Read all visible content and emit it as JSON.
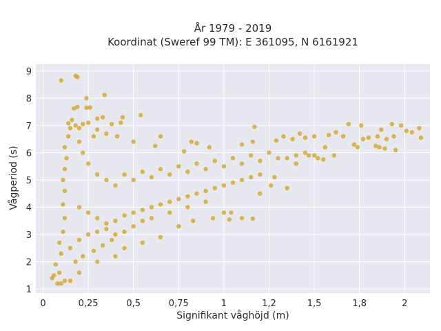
{
  "chart_data": {
    "type": "scatter",
    "title_line1": "År 1979 - 2019",
    "title_line2": "Koordinat (Sweref 99 TM): E 361095, N 6161921",
    "xlabel": "Signifikant våghöjd (m)",
    "ylabel": "Vågperiod (s)",
    "xlim": [
      -0.04,
      2.14
    ],
    "ylim": [
      0.85,
      9.25
    ],
    "xticks": [
      0,
      0.25,
      0.5,
      0.75,
      1,
      1.25,
      1.5,
      1.75,
      2
    ],
    "xtick_labels": [
      "0",
      "0,25",
      "0,5",
      "0,75",
      "1",
      "1,2",
      "1,5",
      "1,8",
      "2"
    ],
    "yticks": [
      1,
      2,
      3,
      4,
      5,
      6,
      7,
      8,
      9
    ],
    "ytick_labels": [
      "1",
      "2",
      "3",
      "4",
      "5",
      "6",
      "7",
      "8",
      "9"
    ],
    "grid": true,
    "marker_color": "#d4a523",
    "background_color": "#e8e8f0",
    "series": [
      {
        "values": [
          [
            0.1,
            8.65
          ],
          [
            0.18,
            8.82
          ],
          [
            0.19,
            8.78
          ],
          [
            0.34,
            8.12
          ],
          [
            0.24,
            8.0
          ],
          [
            0.19,
            7.68
          ],
          [
            0.17,
            7.62
          ],
          [
            0.24,
            7.65
          ],
          [
            0.26,
            7.66
          ],
          [
            0.54,
            7.38
          ],
          [
            0.44,
            7.3
          ],
          [
            0.3,
            7.25
          ],
          [
            0.33,
            7.3
          ],
          [
            0.25,
            7.1
          ],
          [
            0.43,
            7.1
          ],
          [
            0.38,
            7.05
          ],
          [
            0.14,
            7.08
          ],
          [
            0.22,
            7.05
          ],
          [
            0.2,
            6.9
          ],
          [
            0.3,
            6.85
          ],
          [
            0.35,
            6.7
          ],
          [
            0.28,
            6.6
          ],
          [
            0.41,
            6.6
          ],
          [
            0.65,
            6.6
          ],
          [
            0.5,
            6.4
          ],
          [
            0.78,
            6.05
          ],
          [
            0.62,
            6.25
          ],
          [
            0.85,
            6.35
          ],
          [
            0.82,
            6.4
          ],
          [
            0.92,
            6.2
          ],
          [
            1.1,
            6.3
          ],
          [
            1.16,
            6.4
          ],
          [
            1.17,
            6.95
          ],
          [
            1.29,
            6.45
          ],
          [
            1.33,
            6.6
          ],
          [
            1.42,
            6.7
          ],
          [
            1.45,
            6.55
          ],
          [
            1.38,
            6.5
          ],
          [
            1.5,
            6.6
          ],
          [
            1.58,
            6.65
          ],
          [
            1.62,
            6.75
          ],
          [
            1.69,
            7.05
          ],
          [
            1.76,
            7.0
          ],
          [
            1.85,
            6.6
          ],
          [
            1.87,
            6.85
          ],
          [
            1.93,
            7.05
          ],
          [
            1.98,
            7.0
          ],
          [
            2.01,
            6.8
          ],
          [
            2.04,
            6.75
          ],
          [
            2.08,
            6.9
          ],
          [
            2.09,
            6.55
          ],
          [
            1.9,
            6.5
          ],
          [
            1.94,
            6.6
          ],
          [
            1.84,
            6.25
          ],
          [
            1.77,
            6.5
          ],
          [
            1.8,
            6.55
          ],
          [
            1.74,
            6.2
          ],
          [
            1.86,
            6.2
          ],
          [
            1.89,
            6.15
          ],
          [
            1.95,
            6.1
          ],
          [
            1.72,
            6.3
          ],
          [
            1.66,
            6.6
          ],
          [
            1.56,
            6.2
          ],
          [
            1.61,
            5.9
          ],
          [
            1.55,
            5.75
          ],
          [
            1.52,
            5.8
          ],
          [
            1.47,
            5.9
          ],
          [
            1.4,
            5.6
          ],
          [
            1.35,
            5.8
          ],
          [
            1.28,
            5.1
          ],
          [
            1.35,
            4.7
          ],
          [
            1.2,
            4.5
          ],
          [
            1.26,
            4.8
          ],
          [
            1.04,
            3.8
          ],
          [
            1.1,
            3.6
          ],
          [
            1.16,
            3.58
          ],
          [
            1.03,
            3.55
          ],
          [
            1.0,
            3.8
          ],
          [
            0.94,
            3.6
          ],
          [
            0.83,
            3.5
          ],
          [
            0.75,
            3.3
          ],
          [
            0.65,
            2.9
          ],
          [
            0.55,
            2.7
          ],
          [
            0.45,
            2.5
          ],
          [
            0.4,
            2.2
          ],
          [
            0.3,
            2.0
          ],
          [
            0.2,
            1.6
          ],
          [
            0.15,
            1.3
          ],
          [
            0.08,
            1.2
          ],
          [
            0.06,
            1.5
          ],
          [
            0.05,
            1.4
          ],
          [
            0.1,
            1.2
          ],
          [
            0.12,
            1.3
          ],
          [
            0.09,
            1.6
          ],
          [
            0.07,
            1.9
          ],
          [
            0.1,
            2.3
          ],
          [
            0.09,
            2.7
          ],
          [
            0.11,
            3.1
          ],
          [
            0.12,
            3.6
          ],
          [
            0.11,
            4.1
          ],
          [
            0.12,
            4.6
          ],
          [
            0.11,
            5.0
          ],
          [
            0.12,
            5.4
          ],
          [
            0.13,
            5.8
          ],
          [
            0.12,
            6.2
          ],
          [
            0.14,
            6.6
          ],
          [
            0.15,
            6.9
          ],
          [
            0.16,
            7.2
          ],
          [
            0.18,
            7.0
          ],
          [
            0.2,
            6.4
          ],
          [
            0.22,
            6.0
          ],
          [
            0.25,
            5.6
          ],
          [
            0.3,
            5.2
          ],
          [
            0.35,
            5.0
          ],
          [
            0.4,
            4.8
          ],
          [
            0.45,
            5.2
          ],
          [
            0.5,
            5.0
          ],
          [
            0.55,
            5.3
          ],
          [
            0.6,
            5.1
          ],
          [
            0.65,
            5.4
          ],
          [
            0.7,
            5.2
          ],
          [
            0.75,
            5.5
          ],
          [
            0.8,
            5.3
          ],
          [
            0.85,
            5.6
          ],
          [
            0.9,
            5.4
          ],
          [
            0.95,
            5.7
          ],
          [
            1.0,
            5.5
          ],
          [
            1.05,
            5.8
          ],
          [
            1.1,
            5.6
          ],
          [
            1.15,
            5.9
          ],
          [
            1.2,
            5.7
          ],
          [
            1.25,
            6.0
          ],
          [
            1.3,
            5.8
          ],
          [
            1.4,
            5.9
          ],
          [
            1.45,
            6.0
          ],
          [
            1.5,
            5.9
          ],
          [
            0.2,
            4.0
          ],
          [
            0.25,
            3.8
          ],
          [
            0.3,
            3.6
          ],
          [
            0.35,
            3.4
          ],
          [
            0.4,
            3.5
          ],
          [
            0.45,
            3.7
          ],
          [
            0.5,
            3.8
          ],
          [
            0.55,
            3.9
          ],
          [
            0.6,
            4.0
          ],
          [
            0.65,
            4.1
          ],
          [
            0.7,
            4.2
          ],
          [
            0.75,
            4.3
          ],
          [
            0.8,
            4.4
          ],
          [
            0.85,
            4.5
          ],
          [
            0.9,
            4.6
          ],
          [
            0.95,
            4.7
          ],
          [
            1.0,
            4.8
          ],
          [
            1.05,
            4.9
          ],
          [
            1.1,
            5.0
          ],
          [
            1.15,
            5.1
          ],
          [
            1.2,
            5.2
          ],
          [
            0.15,
            2.5
          ],
          [
            0.2,
            2.8
          ],
          [
            0.25,
            3.0
          ],
          [
            0.3,
            3.1
          ],
          [
            0.35,
            3.2
          ],
          [
            0.4,
            3.0
          ],
          [
            0.45,
            3.1
          ],
          [
            0.5,
            3.3
          ],
          [
            0.55,
            3.5
          ],
          [
            0.6,
            3.6
          ],
          [
            0.7,
            3.8
          ],
          [
            0.8,
            4.0
          ],
          [
            0.9,
            4.2
          ],
          [
            0.18,
            2.0
          ],
          [
            0.22,
            2.2
          ],
          [
            0.28,
            2.4
          ],
          [
            0.33,
            2.6
          ],
          [
            0.38,
            2.8
          ]
        ]
      }
    ]
  }
}
